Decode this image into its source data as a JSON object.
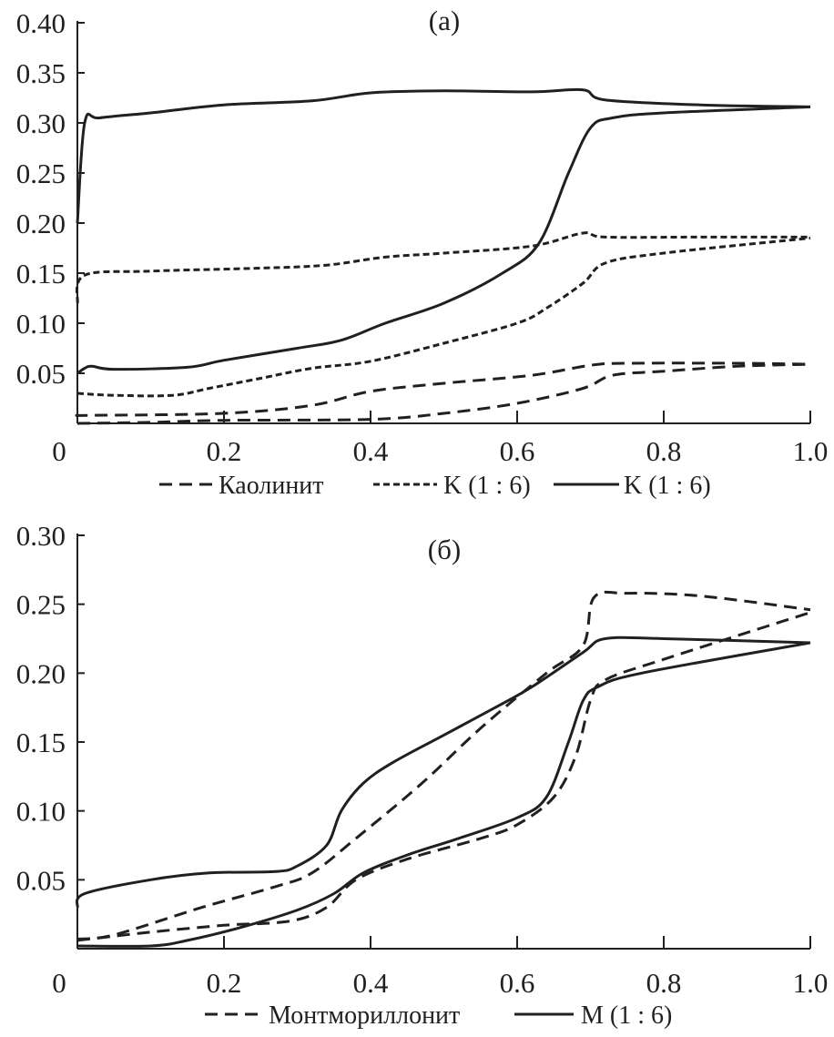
{
  "chart_data": [
    {
      "type": "line",
      "title": "(a)",
      "xlim": [
        0,
        1.0
      ],
      "ylim": [
        0,
        0.4
      ],
      "xticks": [
        "0",
        "0.2",
        "0.4",
        "0.6",
        "0.8",
        "1.0"
      ],
      "yticks": [
        "0.05",
        "0.10",
        "0.15",
        "0.20",
        "0.25",
        "0.30",
        "0.35",
        "0.40"
      ],
      "legend_position": "bottom",
      "legend": [
        {
          "name": "Каолинит",
          "style": "dashed"
        },
        {
          "name": "K (1 : 6)",
          "style": "dotted"
        },
        {
          "name": "K (1 : 6)",
          "style": "solid"
        }
      ],
      "series": [
        {
          "legend": 0,
          "branch": "upper",
          "x": [
            0,
            0.02,
            0.2,
            0.32,
            0.4,
            0.5,
            0.62,
            0.7,
            0.75,
            0.9,
            1.0
          ],
          "y": [
            0.008,
            0.008,
            0.01,
            0.018,
            0.032,
            0.04,
            0.048,
            0.058,
            0.06,
            0.06,
            0.059
          ]
        },
        {
          "legend": 0,
          "branch": "lower",
          "x": [
            0,
            0.1,
            0.2,
            0.4,
            0.5,
            0.6,
            0.69,
            0.73,
            0.8,
            0.9,
            1.0
          ],
          "y": [
            0,
            0.001,
            0.003,
            0.004,
            0.01,
            0.02,
            0.035,
            0.048,
            0.052,
            0.057,
            0.059
          ]
        },
        {
          "legend": 1,
          "branch": "upper",
          "x": [
            0,
            0.01,
            0.1,
            0.25,
            0.34,
            0.42,
            0.5,
            0.62,
            0.69,
            0.72,
            0.85,
            1.0
          ],
          "y": [
            0.12,
            0.148,
            0.152,
            0.155,
            0.158,
            0.166,
            0.17,
            0.177,
            0.19,
            0.186,
            0.186,
            0.186
          ]
        },
        {
          "legend": 1,
          "branch": "lower",
          "x": [
            0,
            0.05,
            0.13,
            0.18,
            0.25,
            0.32,
            0.4,
            0.5,
            0.6,
            0.64,
            0.69,
            0.72,
            0.8,
            1.0
          ],
          "y": [
            0.03,
            0.028,
            0.028,
            0.035,
            0.045,
            0.055,
            0.062,
            0.08,
            0.1,
            0.115,
            0.14,
            0.16,
            0.17,
            0.185
          ]
        },
        {
          "legend": 2,
          "branch": "upper",
          "x": [
            0,
            0.01,
            0.03,
            0.1,
            0.2,
            0.32,
            0.4,
            0.5,
            0.62,
            0.69,
            0.72,
            0.85,
            1.0
          ],
          "y": [
            0.2,
            0.3,
            0.305,
            0.31,
            0.318,
            0.322,
            0.33,
            0.332,
            0.331,
            0.333,
            0.323,
            0.318,
            0.316
          ]
        },
        {
          "legend": 2,
          "branch": "lower",
          "x": [
            0,
            0.01,
            0.02,
            0.05,
            0.15,
            0.2,
            0.3,
            0.36,
            0.42,
            0.5,
            0.58,
            0.63,
            0.67,
            0.7,
            0.73,
            0.8,
            1.0
          ],
          "y": [
            0.05,
            0.055,
            0.057,
            0.054,
            0.056,
            0.063,
            0.075,
            0.083,
            0.1,
            0.12,
            0.15,
            0.18,
            0.25,
            0.295,
            0.305,
            0.31,
            0.316
          ]
        }
      ]
    },
    {
      "type": "line",
      "title": "(б)",
      "xlim": [
        0,
        1.0
      ],
      "ylim": [
        0,
        0.3
      ],
      "xticks": [
        "0",
        "0.2",
        "0.4",
        "0.6",
        "0.8",
        "1.0"
      ],
      "yticks": [
        "0.05",
        "0.10",
        "0.15",
        "0.20",
        "0.25",
        "0.30"
      ],
      "legend_position": "bottom",
      "legend": [
        {
          "name": "Монтмориллонит",
          "style": "dashed"
        },
        {
          "name": "M (1 : 6)",
          "style": "solid"
        }
      ],
      "series": [
        {
          "legend": 0,
          "branch": "upper",
          "x": [
            0,
            0.05,
            0.17,
            0.27,
            0.32,
            0.38,
            0.47,
            0.55,
            0.64,
            0.69,
            0.705,
            0.75,
            0.85,
            1.0
          ],
          "y": [
            0.007,
            0.01,
            0.03,
            0.045,
            0.055,
            0.08,
            0.12,
            0.16,
            0.2,
            0.22,
            0.255,
            0.258,
            0.256,
            0.246
          ]
        },
        {
          "legend": 0,
          "branch": "lower",
          "x": [
            0,
            0.1,
            0.2,
            0.29,
            0.34,
            0.38,
            0.45,
            0.55,
            0.6,
            0.65,
            0.68,
            0.7,
            0.72,
            0.8,
            1.0
          ],
          "y": [
            0.006,
            0.012,
            0.017,
            0.02,
            0.03,
            0.05,
            0.065,
            0.08,
            0.09,
            0.11,
            0.14,
            0.18,
            0.195,
            0.21,
            0.244
          ]
        },
        {
          "legend": 1,
          "branch": "upper",
          "x": [
            0,
            0.01,
            0.1,
            0.18,
            0.27,
            0.3,
            0.34,
            0.36,
            0.39,
            0.43,
            0.5,
            0.57,
            0.62,
            0.69,
            0.72,
            0.8,
            1.0
          ],
          "y": [
            0.03,
            0.04,
            0.05,
            0.055,
            0.056,
            0.06,
            0.075,
            0.1,
            0.12,
            0.135,
            0.155,
            0.175,
            0.19,
            0.215,
            0.225,
            0.225,
            0.222
          ]
        },
        {
          "legend": 1,
          "branch": "lower",
          "x": [
            0,
            0.1,
            0.15,
            0.22,
            0.3,
            0.35,
            0.39,
            0.45,
            0.52,
            0.6,
            0.64,
            0.67,
            0.69,
            0.71,
            0.77,
            1.0
          ],
          "y": [
            0.002,
            0.002,
            0.006,
            0.015,
            0.028,
            0.04,
            0.055,
            0.068,
            0.08,
            0.095,
            0.11,
            0.15,
            0.18,
            0.19,
            0.2,
            0.222
          ]
        }
      ]
    }
  ]
}
